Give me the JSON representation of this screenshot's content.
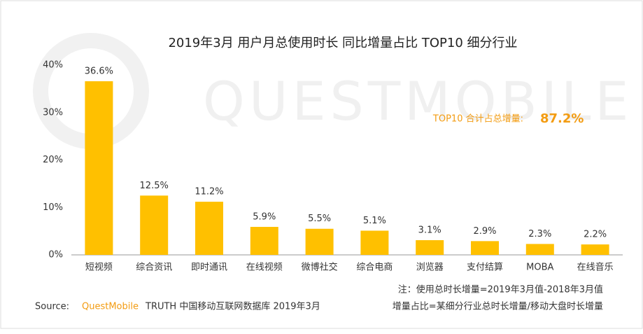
{
  "chart_data": {
    "type": "bar",
    "title": "2019年3月 用户月总使用时长 同比增量占比 TOP10 细分行业",
    "watermark": "QUESTMOBILE",
    "categories": [
      "短视频",
      "综合资讯",
      "即时通讯",
      "在线视频",
      "微博社交",
      "综合电商",
      "浏览器",
      "支付结算",
      "MOBA",
      "在线音乐"
    ],
    "values": [
      36.6,
      12.5,
      11.2,
      5.9,
      5.5,
      5.1,
      3.1,
      2.9,
      2.3,
      2.2
    ],
    "value_labels": [
      "36.6%",
      "12.5%",
      "11.2%",
      "5.9%",
      "5.5%",
      "5.1%",
      "3.1%",
      "2.9%",
      "2.3%",
      "2.2%"
    ],
    "color": "#ffc000",
    "ylim": [
      0,
      40
    ],
    "yticks": [
      {
        "value": 0,
        "label": "0%"
      },
      {
        "value": 10,
        "label": "10%"
      },
      {
        "value": 20,
        "label": "20%"
      },
      {
        "value": 30,
        "label": "30%"
      },
      {
        "value": 40,
        "label": "40%"
      }
    ],
    "grid": false,
    "annotation": {
      "label": "TOP10 合计占总增量:",
      "value": "87.2%"
    },
    "notes": [
      "注：使用总时长增量=2019年3月值-2018年3月值",
      "增量占比=某细分行业总时长增量/移动大盘时长增量"
    ],
    "source": {
      "label": "Source:",
      "brand": "QuestMobile",
      "text": "TRUTH 中国移动互联网数据库 2019年3月"
    }
  }
}
